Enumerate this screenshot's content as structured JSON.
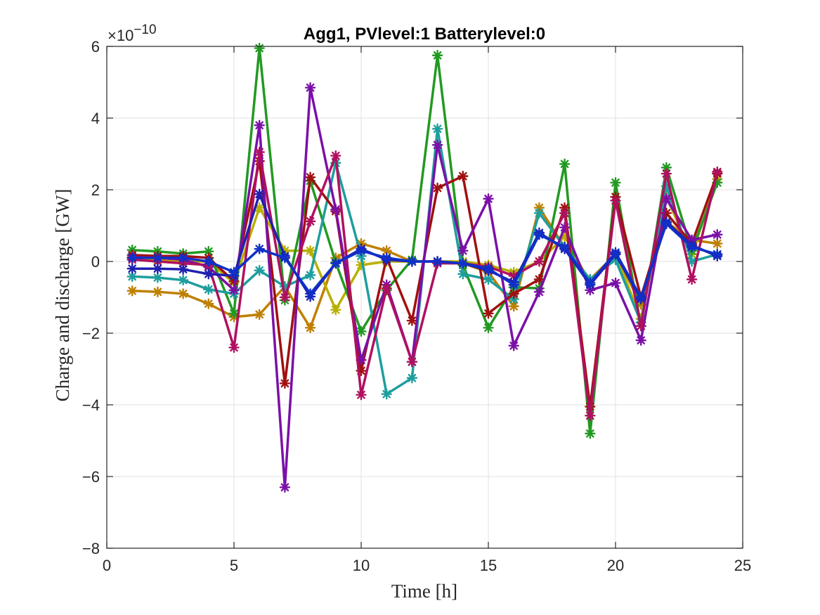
{
  "chart_data": {
    "type": "line",
    "title": "Agg1, PVlevel:1 Batterylevel:0",
    "xlabel": "Time [h]",
    "ylabel": "Charge and discharge [GW]",
    "y_exponent_base": "×10",
    "y_exponent_power": "−10",
    "xlim": [
      0,
      25
    ],
    "ylim": [
      -8,
      6
    ],
    "xticks": [
      0,
      5,
      10,
      15,
      20,
      25
    ],
    "yticks": [
      -8,
      -6,
      -4,
      -2,
      0,
      2,
      4,
      6
    ],
    "xtick_labels": [
      "0",
      "5",
      "10",
      "15",
      "20",
      "25"
    ],
    "ytick_labels": [
      "−8",
      "−6",
      "−4",
      "−2",
      "0",
      "2",
      "4",
      "6"
    ],
    "grid": true,
    "marker": "asterisk",
    "x": [
      1,
      2,
      3,
      4,
      5,
      6,
      7,
      8,
      9,
      10,
      11,
      12,
      13,
      14,
      15,
      16,
      17,
      18,
      19,
      20,
      21,
      22,
      23,
      24
    ],
    "series": [
      {
        "color": "#bf8000",
        "values": [
          -0.82,
          -0.85,
          -0.9,
          -1.18,
          -1.55,
          -1.48,
          -0.7,
          -1.85,
          0.1,
          0.5,
          0.3,
          0.0,
          0.0,
          -0.05,
          -0.3,
          -1.25,
          1.5,
          0.4,
          -0.5,
          0.2,
          -1.2,
          1.1,
          0.6,
          0.5
        ]
      },
      {
        "color": "#b8b000",
        "values": [
          0.1,
          0.05,
          0.0,
          0.0,
          -0.6,
          1.5,
          0.3,
          0.3,
          -1.35,
          -0.1,
          0.0,
          0.0,
          0.0,
          0.0,
          -0.1,
          -0.3,
          0.0,
          0.7,
          -0.6,
          0.2,
          -1.6,
          1.8,
          0.2,
          2.3
        ]
      },
      {
        "color": "#229922",
        "values": [
          0.32,
          0.28,
          0.22,
          0.28,
          -1.45,
          5.95,
          -1.08,
          2.25,
          -0.03,
          -1.95,
          -0.8,
          0.05,
          5.75,
          -0.1,
          -1.85,
          -0.72,
          -0.75,
          2.72,
          -4.8,
          2.2,
          -1.8,
          2.62,
          0.3,
          2.2
        ]
      },
      {
        "color": "#1e9e9e",
        "values": [
          -0.42,
          -0.45,
          -0.52,
          -0.78,
          -0.9,
          -0.25,
          -0.7,
          -0.38,
          2.75,
          0.15,
          -3.7,
          -3.25,
          3.7,
          -0.35,
          -0.5,
          -1.05,
          1.35,
          0.4,
          -0.5,
          0.05,
          -1.7,
          2.1,
          0.0,
          0.2
        ]
      },
      {
        "color": "#a01010",
        "values": [
          0.18,
          0.15,
          0.15,
          0.1,
          -0.55,
          2.8,
          -3.4,
          2.35,
          1.4,
          -3.05,
          0.1,
          -1.65,
          2.05,
          2.38,
          -1.45,
          -0.9,
          -0.5,
          1.5,
          -4.05,
          1.8,
          -1.0,
          1.35,
          0.5,
          2.45
        ]
      },
      {
        "color": "#7b10a8",
        "values": [
          0.12,
          0.1,
          0.05,
          -0.15,
          -0.8,
          3.8,
          -6.3,
          4.85,
          1.45,
          -2.75,
          -0.65,
          -2.8,
          3.25,
          0.3,
          1.75,
          -2.35,
          -0.85,
          0.95,
          -0.8,
          -0.6,
          -2.2,
          1.75,
          0.6,
          0.75
        ]
      },
      {
        "color": "#b01060",
        "values": [
          0.05,
          0.0,
          -0.05,
          -0.1,
          -2.4,
          3.05,
          -1.0,
          1.12,
          2.95,
          -3.72,
          -0.75,
          -2.8,
          -0.05,
          -0.05,
          -0.15,
          -0.4,
          0.0,
          1.35,
          -4.3,
          1.7,
          -1.8,
          2.45,
          -0.5,
          2.5
        ]
      },
      {
        "color": "#2020b0",
        "values": [
          -0.2,
          -0.2,
          -0.22,
          -0.35,
          -0.4,
          1.88,
          0.15,
          -0.98,
          -0.05,
          0.35,
          0.05,
          0.0,
          0.0,
          -0.05,
          -0.25,
          -0.58,
          0.8,
          0.35,
          -0.65,
          0.2,
          -1.05,
          1.1,
          0.45,
          0.15
        ]
      },
      {
        "color": "#1030c8",
        "values": [
          0.1,
          0.1,
          0.1,
          0.0,
          -0.3,
          0.35,
          0.1,
          -0.9,
          -0.05,
          0.3,
          0.1,
          0.0,
          0.0,
          -0.05,
          -0.2,
          -0.65,
          0.75,
          0.4,
          -0.6,
          0.25,
          -1.0,
          1.05,
          0.4,
          0.2
        ]
      }
    ]
  }
}
